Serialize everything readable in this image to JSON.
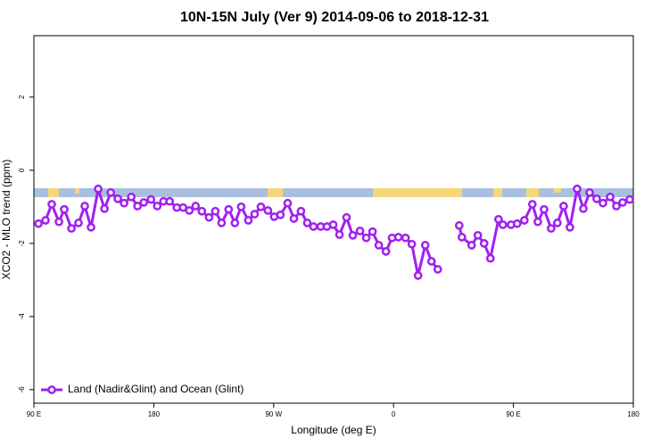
{
  "chart_data": {
    "type": "line",
    "title": "10N-15N July (Ver 9)   2014-09-06 to 2018-12-31",
    "x_label": "Longitude (deg E)",
    "y_label": "XCO2 - MLO trend (ppm)",
    "xlim": [
      90,
      540
    ],
    "ylim": [
      -6.37,
      3.68
    ],
    "xticks": [
      {
        "value": 90,
        "label": "90 E"
      },
      180,
      {
        "value": 270,
        "label": "90 W"
      },
      {
        "value": 360,
        "label": "0"
      },
      {
        "value": 450,
        "label": "90 E"
      },
      {
        "value": 540,
        "label": "180"
      }
    ],
    "yticks": [
      -6,
      -4,
      -2,
      0,
      2
    ],
    "legend": "bottom-left",
    "series": [
      {
        "name": "Land (Nadir&Glint) and Ocean (Glint)",
        "color": "#a020f0",
        "x": [
          93.4,
          98.7,
          103.4,
          108.8,
          112.8,
          118.2,
          123.5,
          128.2,
          132.9,
          138.3,
          143.0,
          147.7,
          153.0,
          157.7,
          163.1,
          167.8,
          172.5,
          177.9,
          182.6,
          187.3,
          191.9,
          197.3,
          202.0,
          206.7,
          211.4,
          216.1,
          221.5,
          226.2,
          230.9,
          236.2,
          240.9,
          245.6,
          251.0,
          255.7,
          260.4,
          265.7,
          270.4,
          275.1,
          280.5,
          285.2,
          290.5,
          295.2,
          299.9,
          305.3,
          310.0,
          314.7,
          319.4,
          324.7,
          329.4,
          334.8,
          339.5,
          344.2,
          348.9,
          354.3,
          358.9,
          363.6,
          369.0,
          373.7,
          378.4,
          383.8,
          388.5,
          393.2,
          400.0,
          409.3,
          411.3,
          418.6,
          423.3,
          428.0,
          432.7,
          438.8,
          442.1,
          448.2,
          452.8,
          458.2,
          464.2,
          468.3,
          473.0,
          478.3,
          483.0,
          487.7,
          492.4,
          497.8,
          502.5,
          507.2,
          512.5,
          517.2,
          522.6,
          527.3,
          532.0,
          537.3
        ],
        "values": [
          -1.46,
          -1.37,
          -0.93,
          -1.41,
          -1.07,
          -1.59,
          -1.44,
          -0.98,
          -1.56,
          -0.51,
          -1.05,
          -0.61,
          -0.78,
          -0.9,
          -0.73,
          -0.98,
          -0.88,
          -0.8,
          -0.98,
          -0.85,
          -0.85,
          -1.02,
          -1.02,
          -1.1,
          -0.98,
          -1.12,
          -1.29,
          -1.12,
          -1.44,
          -1.07,
          -1.44,
          -1.0,
          -1.37,
          -1.2,
          -1.0,
          -1.1,
          -1.27,
          -1.22,
          -0.9,
          -1.32,
          -1.12,
          -1.44,
          -1.54,
          -1.54,
          -1.54,
          -1.49,
          -1.76,
          -1.29,
          -1.78,
          -1.66,
          -1.85,
          -1.68,
          -2.05,
          -2.22,
          -1.85,
          -1.83,
          -1.85,
          -2.02,
          -2.88,
          -2.05,
          -2.49,
          -2.71,
          null,
          -1.51,
          -1.83,
          -2.05,
          -1.78,
          -2.0,
          -2.41,
          -1.34,
          -1.49,
          -1.49,
          -1.46,
          -1.37,
          -0.93,
          -1.41,
          -1.07,
          -1.59,
          -1.44,
          -0.98,
          -1.56,
          -0.51,
          -1.05,
          -0.61,
          -0.78,
          -0.9,
          -0.73,
          -0.98,
          -0.88,
          -0.8
        ]
      }
    ]
  }
}
